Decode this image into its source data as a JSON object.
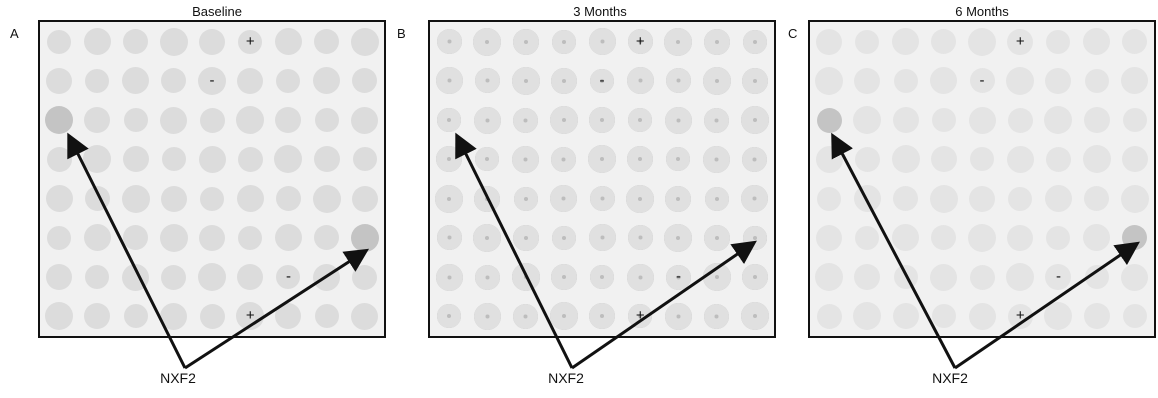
{
  "panels": [
    {
      "letter": "A",
      "title": "Baseline",
      "label": "NXF2",
      "plus": "+",
      "minus": "-"
    },
    {
      "letter": "B",
      "title": "3 Months",
      "label": "NXF2",
      "plus": "+",
      "minus": "-"
    },
    {
      "letter": "C",
      "title": "6 Months",
      "label": "NXF2",
      "plus": "+",
      "minus": "-"
    }
  ]
}
